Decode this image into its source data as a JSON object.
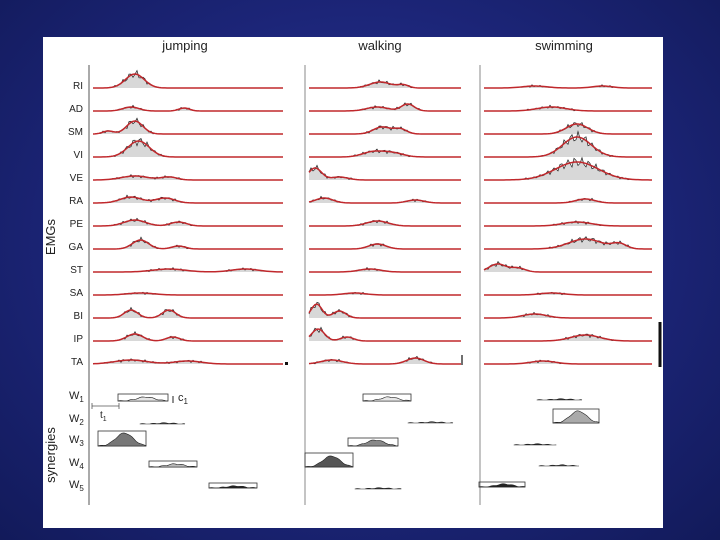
{
  "colors": {
    "background": "#1c2578",
    "panel": "#ffffff",
    "emg_fit": "#c0282c",
    "trace": "#222222"
  },
  "conditions": [
    "jumping",
    "walking",
    "swimming"
  ],
  "group_labels": {
    "emg": "EMGs",
    "synergies": "synergies"
  },
  "muscles": [
    "RI",
    "AD",
    "SM",
    "VI",
    "VE",
    "RA",
    "PE",
    "GA",
    "ST",
    "SA",
    "BI",
    "IP",
    "TA"
  ],
  "synergy_labels": [
    {
      "base": "W",
      "sub": "1"
    },
    {
      "base": "W",
      "sub": "2"
    },
    {
      "base": "W",
      "sub": "3"
    },
    {
      "base": "W",
      "sub": "4"
    },
    {
      "base": "W",
      "sub": "5"
    }
  ],
  "annotations": {
    "amplitude": {
      "base": "c",
      "sub": "1"
    },
    "onset": {
      "base": "t",
      "sub": "1"
    }
  }
}
